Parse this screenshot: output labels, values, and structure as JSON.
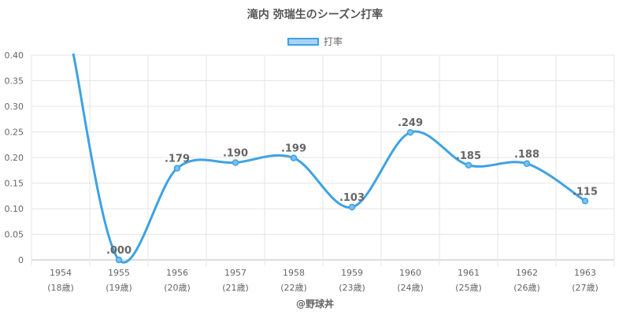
{
  "chart_data": {
    "type": "line",
    "title": "滝内 弥瑞生のシーズン打率",
    "legend_position": "top",
    "grid": true,
    "ylim": [
      0,
      0.4
    ],
    "y_ticks": [
      "0",
      "0.05",
      "0.10",
      "0.15",
      "0.20",
      "0.25",
      "0.30",
      "0.35",
      "0.40"
    ],
    "categories": [
      "1954",
      "1955",
      "1956",
      "1957",
      "1958",
      "1959",
      "1960",
      "1961",
      "1962",
      "1963"
    ],
    "category_sublabels": [
      "(18歳)",
      "(19歳)",
      "(20歳)",
      "(21歳)",
      "(22歳)",
      "(23歳)",
      "(24歳)",
      "(25歳)",
      "(26歳)",
      "(27歳)"
    ],
    "series": [
      {
        "name": "打率",
        "color": "#3fa2e4",
        "values": [
          null,
          0.0,
          0.179,
          0.19,
          0.199,
          0.103,
          0.249,
          0.185,
          0.188,
          0.115
        ],
        "labels": [
          null,
          ".000",
          ".179",
          ".190",
          ".199",
          ".103",
          ".249",
          ".185",
          ".188",
          ".115"
        ],
        "offscale_first_point": true
      }
    ],
    "credit": "@野球丼"
  }
}
